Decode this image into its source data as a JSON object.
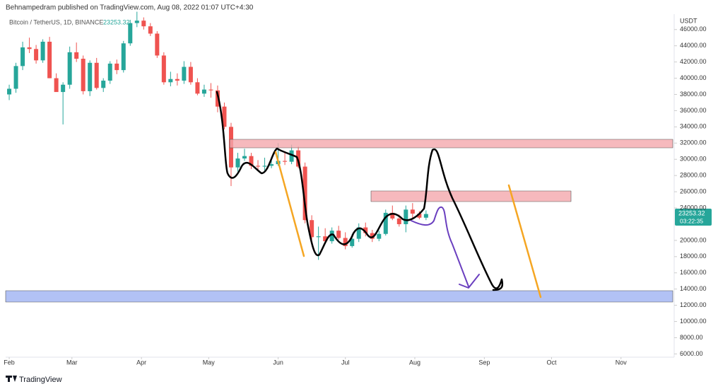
{
  "header": {
    "publisher": "Behnampedram published on TradingView.com, Aug 08, 2022 01:07 UTC+4:30",
    "brand": "TradingView"
  },
  "chart_data": {
    "type": "candlestick",
    "symbol": "Bitcoin / TetherUS, 1D, BINANCE",
    "last_price": "23253.32",
    "countdown": "03:22:35",
    "currency": "USDT",
    "up_color": "#26a69a",
    "down_color": "#ef5350",
    "grid": false,
    "open": [
      38000,
      38700,
      41500,
      43800,
      43600,
      42200,
      44500,
      40000,
      38300,
      39200,
      43200,
      42400,
      38400,
      41900,
      38800,
      39700,
      41800,
      41000,
      44300,
      46800,
      47100,
      46400,
      45500,
      42800,
      39500,
      39900,
      39700,
      41400,
      39500,
      38100,
      38600,
      38500,
      36500,
      34000,
      29000,
      30100,
      30400,
      29200,
      29100,
      29200,
      29400,
      29800,
      29700,
      31100,
      29100,
      22500,
      20400,
      20500,
      19900,
      21200,
      20300,
      19300,
      20200,
      21600,
      20900,
      20200,
      20800,
      23400,
      22700,
      22000,
      23800,
      23300,
      22800
    ],
    "high": [
      39200,
      41900,
      44500,
      45000,
      44100,
      44800,
      45100,
      40600,
      39500,
      43900,
      44400,
      42800,
      42200,
      42500,
      40000,
      42100,
      42300,
      44600,
      47200,
      48200,
      47500,
      46800,
      45800,
      43200,
      40800,
      40600,
      42100,
      42000,
      40000,
      39200,
      39400,
      39100,
      37000,
      34500,
      30800,
      31300,
      30800,
      29900,
      30200,
      30100,
      32000,
      31000,
      31800,
      31600,
      29600,
      23100,
      21700,
      21500,
      21600,
      21800,
      21000,
      20800,
      22100,
      22200,
      21300,
      21200,
      23800,
      24300,
      23200,
      24300,
      24600,
      23600,
      23700
    ],
    "low": [
      37300,
      38200,
      41000,
      43100,
      41800,
      41900,
      40000,
      38600,
      34300,
      38700,
      42000,
      38000,
      37800,
      38600,
      38300,
      39300,
      40500,
      40700,
      44000,
      46300,
      46000,
      45200,
      42500,
      39200,
      39000,
      39100,
      39300,
      39200,
      37900,
      37700,
      37600,
      35800,
      33700,
      26700,
      28500,
      29800,
      28800,
      28700,
      28600,
      28900,
      29200,
      29300,
      29400,
      28900,
      22100,
      20100,
      17600,
      19700,
      19600,
      20100,
      18900,
      19100,
      19800,
      20500,
      19800,
      19900,
      20600,
      22500,
      21700,
      21000,
      22700,
      22600,
      22500
    ],
    "close": [
      38700,
      41500,
      43800,
      43600,
      42200,
      44500,
      40000,
      38300,
      39200,
      43200,
      42400,
      38400,
      41900,
      38800,
      39700,
      41800,
      41000,
      44300,
      46800,
      47100,
      46400,
      45500,
      42800,
      39500,
      39900,
      39700,
      41400,
      39500,
      38100,
      38600,
      38500,
      36500,
      34000,
      29000,
      30100,
      30400,
      29200,
      29100,
      29200,
      29400,
      29800,
      29700,
      31100,
      29100,
      22500,
      20400,
      20500,
      19900,
      21200,
      20300,
      19300,
      20200,
      21600,
      20900,
      20200,
      20800,
      23400,
      22700,
      22000,
      23800,
      23300,
      22800,
      23253.32
    ],
    "xlim": [
      -0.53,
      98.7
    ],
    "xticks": [
      {
        "value": 0,
        "label": "Feb"
      },
      {
        "value": 9.33,
        "label": "Mar"
      },
      {
        "value": 19.67,
        "label": "Apr"
      },
      {
        "value": 29.67,
        "label": "May"
      },
      {
        "value": 40,
        "label": "Jun"
      },
      {
        "value": 50,
        "label": "Jul"
      },
      {
        "value": 60.33,
        "label": "Aug"
      },
      {
        "value": 70.67,
        "label": "Sep"
      },
      {
        "value": 80.67,
        "label": "Oct"
      },
      {
        "value": 91,
        "label": "Nov"
      }
    ],
    "ylim": [
      5600,
      47900
    ],
    "yticks": [
      {
        "value": 6000,
        "label": "6000.00"
      },
      {
        "value": 8000,
        "label": "8000.00"
      },
      {
        "value": 10000,
        "label": "10000.00"
      },
      {
        "value": 12000,
        "label": "12000.00"
      },
      {
        "value": 14000,
        "label": "14000.00"
      },
      {
        "value": 16000,
        "label": "16000.00"
      },
      {
        "value": 18000,
        "label": "18000.00"
      },
      {
        "value": 20000,
        "label": "20000.00"
      },
      {
        "value": 24000,
        "label": "24000.00"
      },
      {
        "value": 26000,
        "label": "26000.00"
      },
      {
        "value": 28000,
        "label": "28000.00"
      },
      {
        "value": 30000,
        "label": "30000.00"
      },
      {
        "value": 32000,
        "label": "32000.00"
      },
      {
        "value": 34000,
        "label": "34000.00"
      },
      {
        "value": 36000,
        "label": "36000.00"
      },
      {
        "value": 38000,
        "label": "38000.00"
      },
      {
        "value": 40000,
        "label": "40000.00"
      },
      {
        "value": 42000,
        "label": "42000.00"
      },
      {
        "value": 44000,
        "label": "44000.00"
      },
      {
        "value": 46000,
        "label": "46000.00"
      }
    ]
  }
}
